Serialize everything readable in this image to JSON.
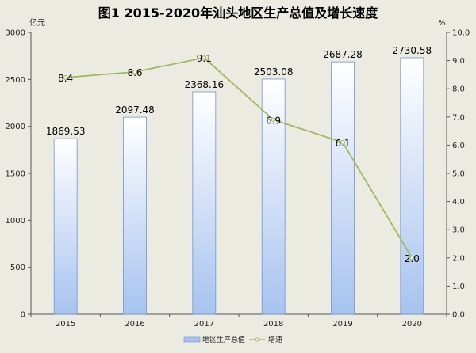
{
  "chart_data": {
    "type": "bar",
    "title": "图1  2015-2020年汕头地区生产总值及增长速度",
    "categories": [
      "2015",
      "2016",
      "2017",
      "2018",
      "2019",
      "2020"
    ],
    "left_axis": {
      "unit": "亿元",
      "min": 0,
      "max": 3000,
      "ticks": [
        "0",
        "500",
        "1000",
        "1500",
        "2000",
        "2500",
        "3000"
      ]
    },
    "right_axis": {
      "unit": "%",
      "min": 0,
      "max": 10,
      "ticks": [
        "0.0",
        "1.0",
        "2.0",
        "3.0",
        "4.0",
        "5.0",
        "6.0",
        "7.0",
        "8.0",
        "9.0",
        "10.0"
      ]
    },
    "series": [
      {
        "name": "地区生产总值",
        "type": "bar",
        "axis": "left",
        "values": [
          1869.53,
          2097.48,
          2368.16,
          2503.08,
          2687.28,
          2730.58
        ],
        "labels": [
          "1869.53",
          "2097.48",
          "2368.16",
          "2503.08",
          "2687.28",
          "2730.58"
        ],
        "color": "#a7c3ef"
      },
      {
        "name": "增速",
        "type": "line",
        "axis": "right",
        "values": [
          8.4,
          8.6,
          9.1,
          6.9,
          6.1,
          2.0
        ],
        "labels": [
          "8.4",
          "8.6",
          "9.1",
          "6.9",
          "6.1",
          "2.0"
        ],
        "color": "#9fba5c"
      }
    ],
    "grid": false,
    "legend": "bottom-center"
  }
}
